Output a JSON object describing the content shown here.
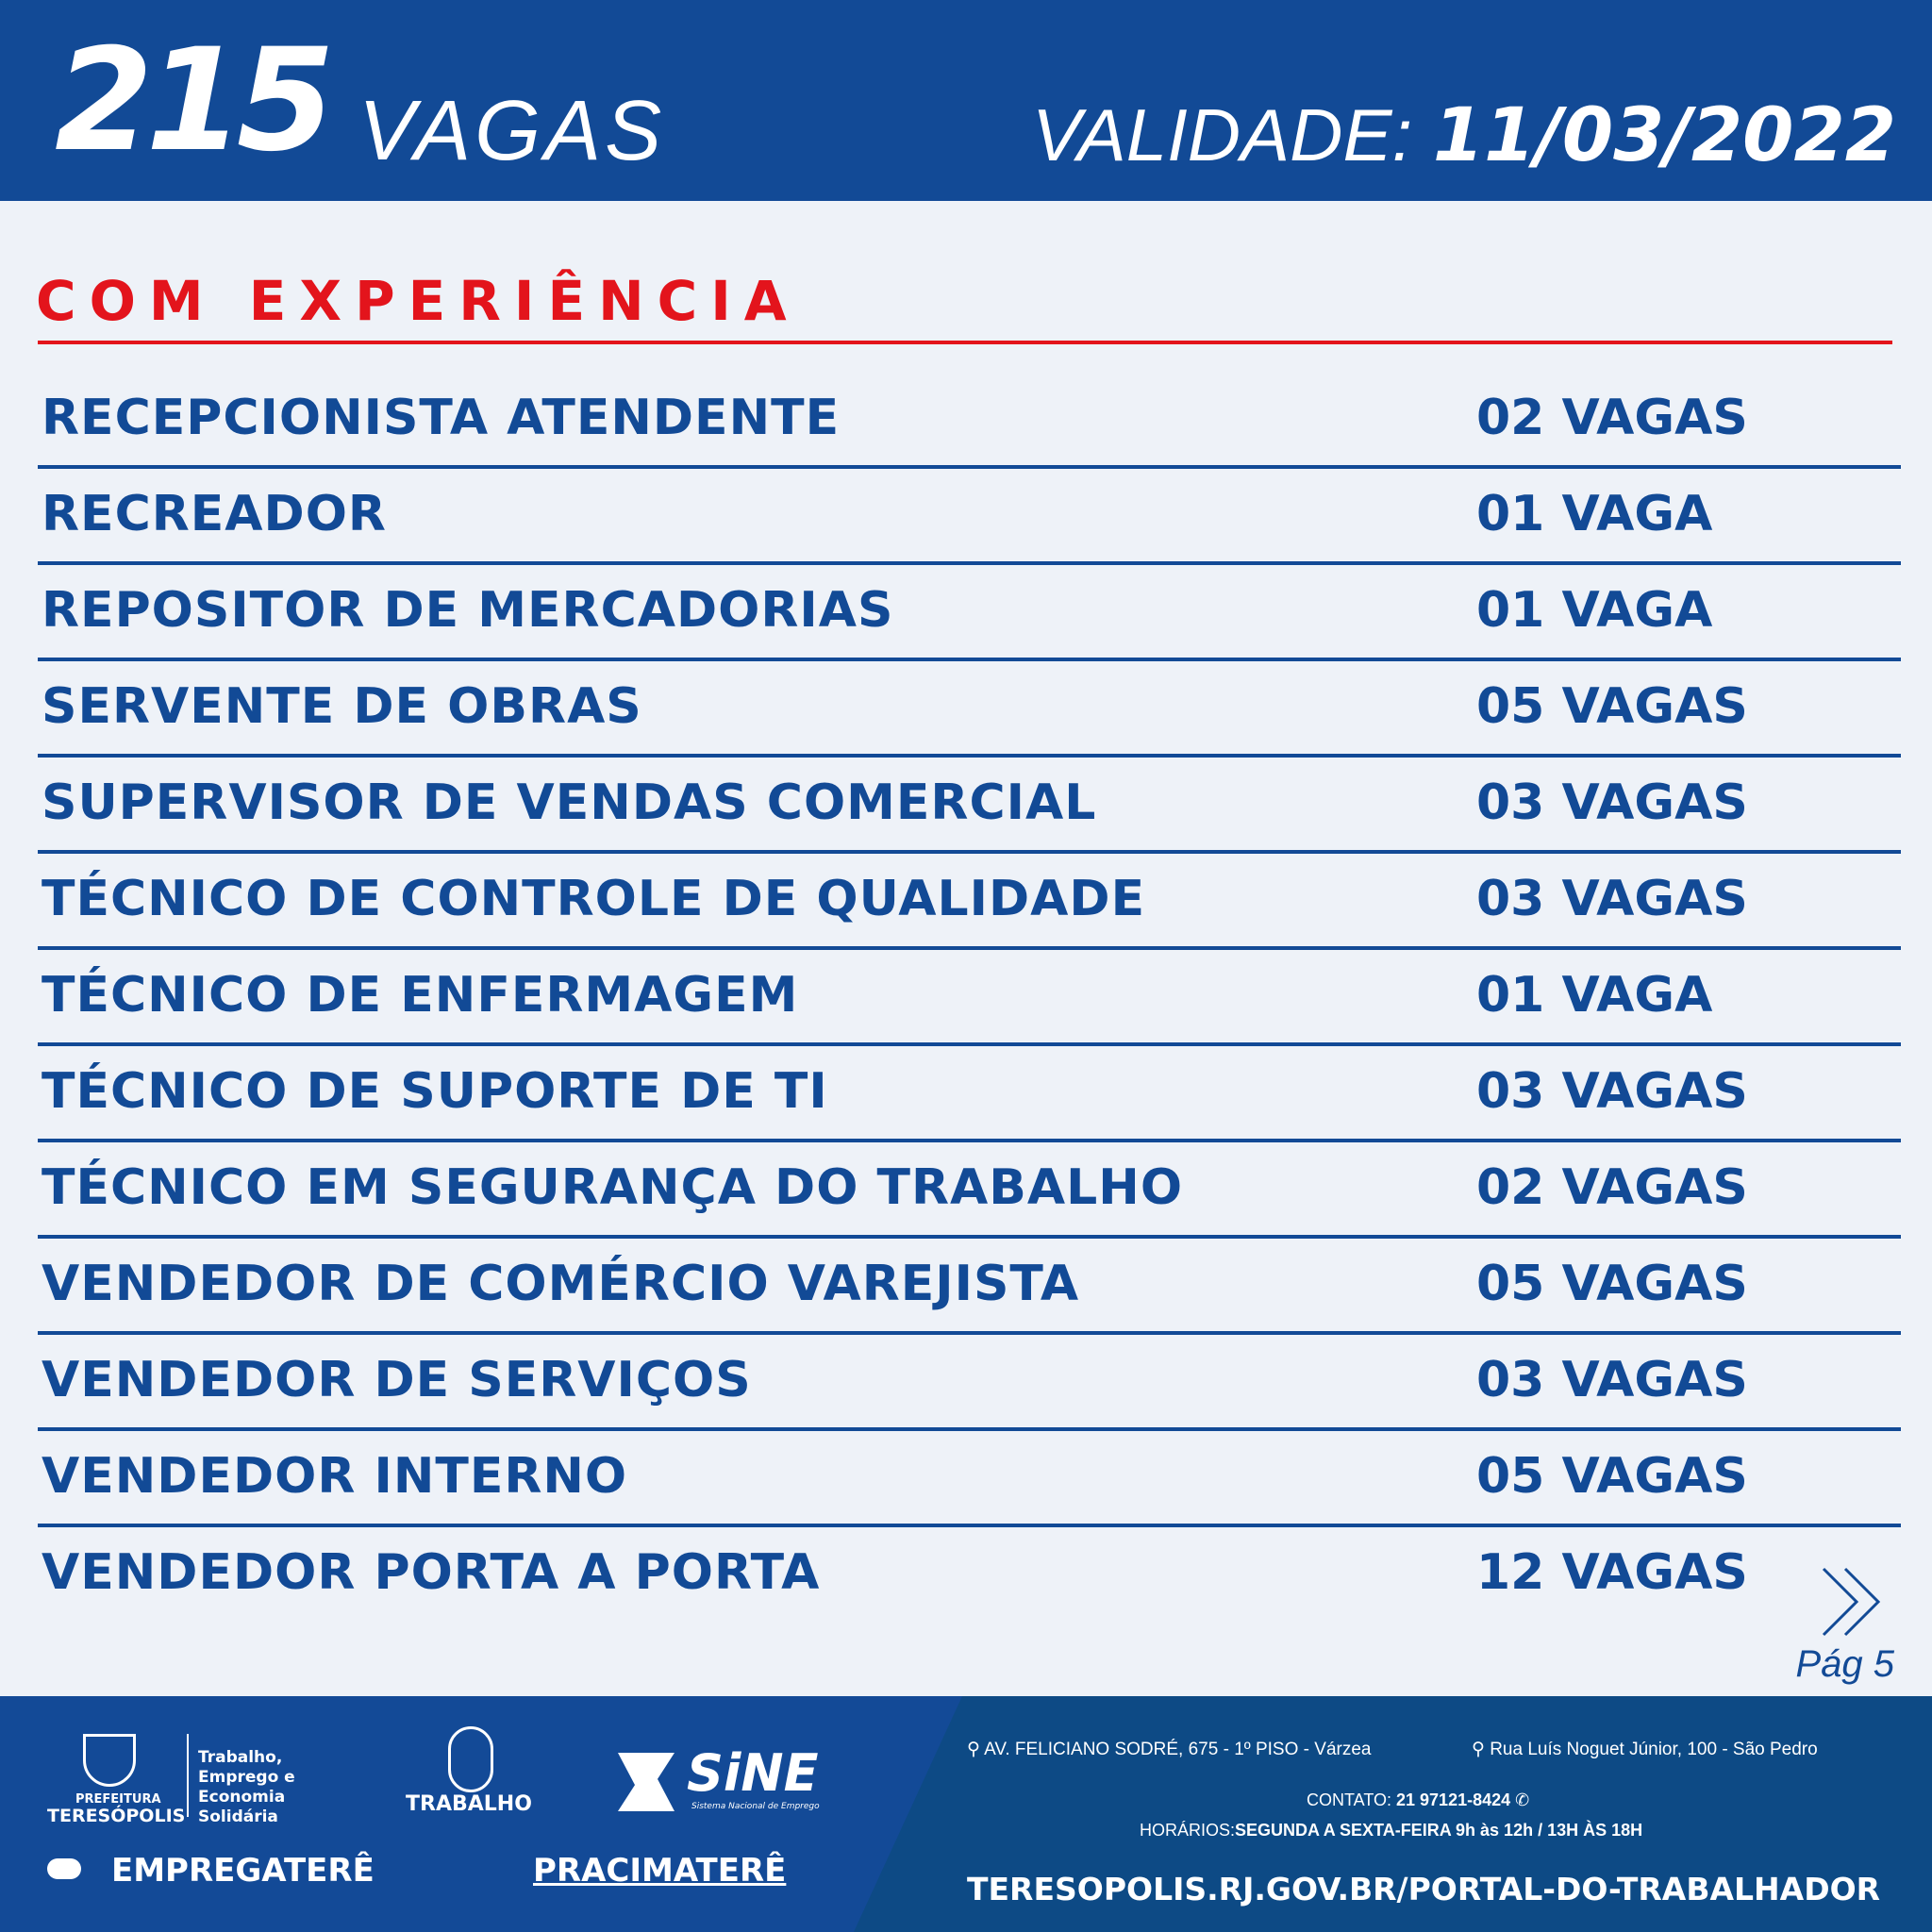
{
  "header": {
    "count": "215",
    "count_label": "VAGAS",
    "validity_label": "VALIDADE:",
    "validity_date": "11/03/2022"
  },
  "section_title": "COM EXPERIÊNCIA",
  "jobs": [
    {
      "title": "RECEPCIONISTA ATENDENTE",
      "vacancies": "02 VAGAS"
    },
    {
      "title": "RECREADOR",
      "vacancies": "01 VAGA"
    },
    {
      "title": "REPOSITOR DE MERCADORIAS",
      "vacancies": "01 VAGA"
    },
    {
      "title": "SERVENTE DE OBRAS",
      "vacancies": "05 VAGAS"
    },
    {
      "title": "SUPERVISOR DE VENDAS COMERCIAL",
      "vacancies": "03 VAGAS"
    },
    {
      "title": "TÉCNICO DE CONTROLE DE QUALIDADE",
      "vacancies": "03 VAGAS"
    },
    {
      "title": "TÉCNICO DE ENFERMAGEM",
      "vacancies": "01 VAGA"
    },
    {
      "title": "TÉCNICO DE SUPORTE DE TI",
      "vacancies": "03 VAGAS"
    },
    {
      "title": "TÉCNICO EM SEGURANÇA DO TRABALHO",
      "vacancies": "02 VAGAS"
    },
    {
      "title": "VENDEDOR DE COMÉRCIO VAREJISTA",
      "vacancies": "05 VAGAS"
    },
    {
      "title": "VENDEDOR DE SERVIÇOS",
      "vacancies": "03 VAGAS"
    },
    {
      "title": "VENDEDOR INTERNO",
      "vacancies": "05 VAGAS"
    },
    {
      "title": "VENDEDOR PORTA A PORTA",
      "vacancies": "12 VAGAS"
    }
  ],
  "page_label": "Pág 5",
  "footer": {
    "logos": {
      "prefeitura": "PREFEITURA",
      "teresopolis": "TERESÓPOLIS",
      "secretaria": "Trabalho, Emprego e Economia Solidária",
      "trabalho": "TRABALHO",
      "sine": "SiNE",
      "sine_sub": "Sistema Nacional de Emprego",
      "empregatere": "EMPREGATERÊ",
      "pracimatere": "PRACIMATERÊ"
    },
    "address1": "AV. FELICIANO SODRÉ, 675 - 1º PISO - Várzea",
    "address2": "Rua Luís Noguet Júnior, 100 - São Pedro",
    "contact_label": "CONTATO:",
    "contact_phone": "21 97121-8424",
    "hours_label": "HORÁRIOS:",
    "hours_value": "SEGUNDA A SEXTA-FEIRA  9h às 12h / 13H ÀS 18H",
    "url": "TERESOPOLIS.RJ.GOV.BR/PORTAL-DO-TRABALHADOR"
  },
  "colors": {
    "primary": "#124A96",
    "accent": "#E3141C",
    "background": "#EEF2F8"
  }
}
